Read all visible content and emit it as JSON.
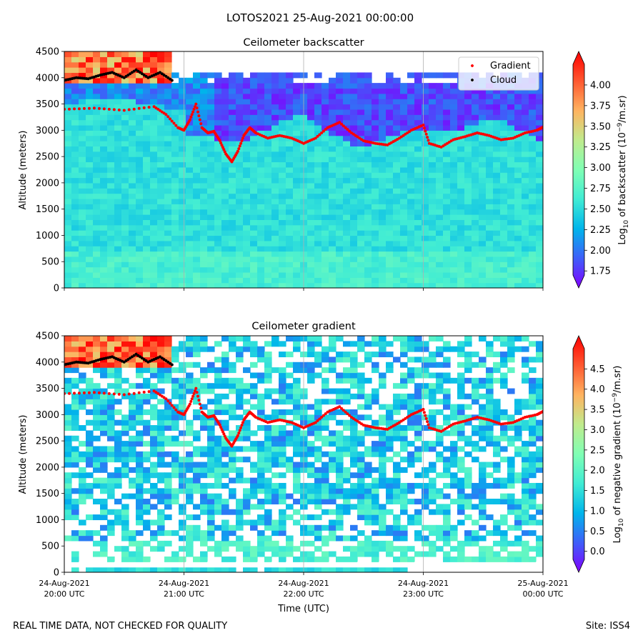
{
  "figure_title": "LOTOS2021 25-Aug-2021 00:00:00",
  "footer": {
    "disclaimer": "REAL TIME DATA, NOT CHECKED FOR QUALITY",
    "site": "Site: ISS4"
  },
  "colors": {
    "rainbow": [
      "#8000ff",
      "#3f5ef9",
      "#00b5eb",
      "#40ecd4",
      "#80ffb4",
      "#c0eb8d",
      "#ffb360",
      "#ff5830",
      "#ff0000"
    ],
    "gradient_marker": "#ff0000",
    "cloud_marker": "#000000",
    "grid": "#b0b0b0"
  },
  "chart_data": [
    {
      "type": "heatmap",
      "title": "Ceilometer backscatter",
      "ylabel": "Altitude (meters)",
      "xlabel": "",
      "ylim": [
        0,
        4500
      ],
      "yticks": [
        "0",
        "500",
        "1000",
        "1500",
        "2000",
        "2500",
        "3000",
        "3500",
        "4000",
        "4500"
      ],
      "xlim_hours": [
        0,
        4
      ],
      "colorbar": {
        "label": "of backscatter",
        "label_prefix": "Log",
        "label_sub": "10",
        "label_units_base": " (10",
        "label_units_exp": "−9",
        "label_units_tail": "/m.sr)",
        "range": [
          1.7,
          4.25
        ],
        "ticks": [
          "1.75",
          "2.00",
          "2.25",
          "2.50",
          "2.75",
          "3.00",
          "3.25",
          "3.50",
          "3.75",
          "4.00"
        ]
      },
      "legend": {
        "position": "top-right",
        "entries": [
          "Gradient",
          "Cloud"
        ]
      },
      "series": [
        {
          "name": "Gradient",
          "x_hours": [
            0.0,
            0.25,
            0.5,
            0.75,
            0.85,
            0.95,
            1.0,
            1.05,
            1.1,
            1.15,
            1.2,
            1.25,
            1.3,
            1.35,
            1.4,
            1.45,
            1.5,
            1.55,
            1.6,
            1.7,
            1.8,
            1.9,
            2.0,
            2.1,
            2.2,
            2.3,
            2.4,
            2.5,
            2.6,
            2.7,
            2.8,
            2.9,
            3.0,
            3.05,
            3.15,
            3.25,
            3.35,
            3.45,
            3.55,
            3.65,
            3.75,
            3.85,
            3.95,
            4.0
          ],
          "altitude_m": [
            3400,
            3420,
            3380,
            3450,
            3300,
            3050,
            3000,
            3200,
            3500,
            3050,
            2950,
            2980,
            2800,
            2550,
            2400,
            2600,
            2900,
            3050,
            2950,
            2850,
            2900,
            2850,
            2750,
            2850,
            3050,
            3150,
            2950,
            2800,
            2750,
            2720,
            2850,
            3000,
            3100,
            2750,
            2680,
            2820,
            2880,
            2950,
            2900,
            2820,
            2850,
            2950,
            3000,
            3060
          ]
        },
        {
          "name": "Cloud",
          "x_hours": [
            0.0,
            0.1,
            0.2,
            0.3,
            0.4,
            0.5,
            0.6,
            0.7,
            0.8,
            0.9
          ],
          "altitude_m": [
            3950,
            4000,
            3980,
            4050,
            4100,
            4000,
            4150,
            4000,
            4100,
            3950
          ]
        }
      ]
    },
    {
      "type": "heatmap",
      "title": "Ceilometer gradient",
      "ylabel": "Altitude (meters)",
      "xlabel": "Time (UTC)",
      "ylim": [
        0,
        4500
      ],
      "yticks": [
        "0",
        "500",
        "1000",
        "1500",
        "2000",
        "2500",
        "3000",
        "3500",
        "4000",
        "4500"
      ],
      "xlim_hours": [
        0,
        4
      ],
      "xticks": [
        {
          "line1": "24-Aug-2021",
          "line2": "20:00 UTC"
        },
        {
          "line1": "24-Aug-2021",
          "line2": "21:00 UTC"
        },
        {
          "line1": "24-Aug-2021",
          "line2": "22:00 UTC"
        },
        {
          "line1": "24-Aug-2021",
          "line2": "23:00 UTC"
        },
        {
          "line1": "25-Aug-2021",
          "line2": "00:00 UTC"
        }
      ],
      "colorbar": {
        "label": "of negative gradient",
        "label_prefix": "Log",
        "label_sub": "10",
        "label_units_base": " (10",
        "label_units_exp": "−9",
        "label_units_tail": "/m.sr)",
        "range": [
          -0.2,
          5.0
        ],
        "ticks": [
          "0.0",
          "0.5",
          "1.0",
          "1.5",
          "2.0",
          "2.5",
          "3.0",
          "3.5",
          "4.0",
          "4.5"
        ]
      },
      "series": [
        {
          "name": "Gradient",
          "x_hours": [
            0.0,
            0.25,
            0.5,
            0.75,
            0.85,
            0.95,
            1.0,
            1.05,
            1.1,
            1.15,
            1.2,
            1.25,
            1.3,
            1.35,
            1.4,
            1.45,
            1.5,
            1.55,
            1.6,
            1.7,
            1.8,
            1.9,
            2.0,
            2.1,
            2.2,
            2.3,
            2.4,
            2.5,
            2.6,
            2.7,
            2.8,
            2.9,
            3.0,
            3.05,
            3.15,
            3.25,
            3.35,
            3.45,
            3.55,
            3.65,
            3.75,
            3.85,
            3.95,
            4.0
          ],
          "altitude_m": [
            3400,
            3420,
            3380,
            3450,
            3300,
            3050,
            3000,
            3200,
            3500,
            3050,
            2950,
            2980,
            2800,
            2550,
            2400,
            2600,
            2900,
            3050,
            2950,
            2850,
            2900,
            2850,
            2750,
            2850,
            3050,
            3150,
            2950,
            2800,
            2750,
            2720,
            2850,
            3000,
            3100,
            2750,
            2680,
            2820,
            2880,
            2950,
            2900,
            2820,
            2850,
            2950,
            3000,
            3060
          ]
        },
        {
          "name": "Cloud",
          "x_hours": [
            0.0,
            0.1,
            0.2,
            0.3,
            0.4,
            0.5,
            0.6,
            0.7,
            0.8,
            0.9
          ],
          "altitude_m": [
            3950,
            4000,
            3980,
            4050,
            4100,
            4000,
            4150,
            4000,
            4100,
            3950
          ]
        }
      ]
    }
  ]
}
